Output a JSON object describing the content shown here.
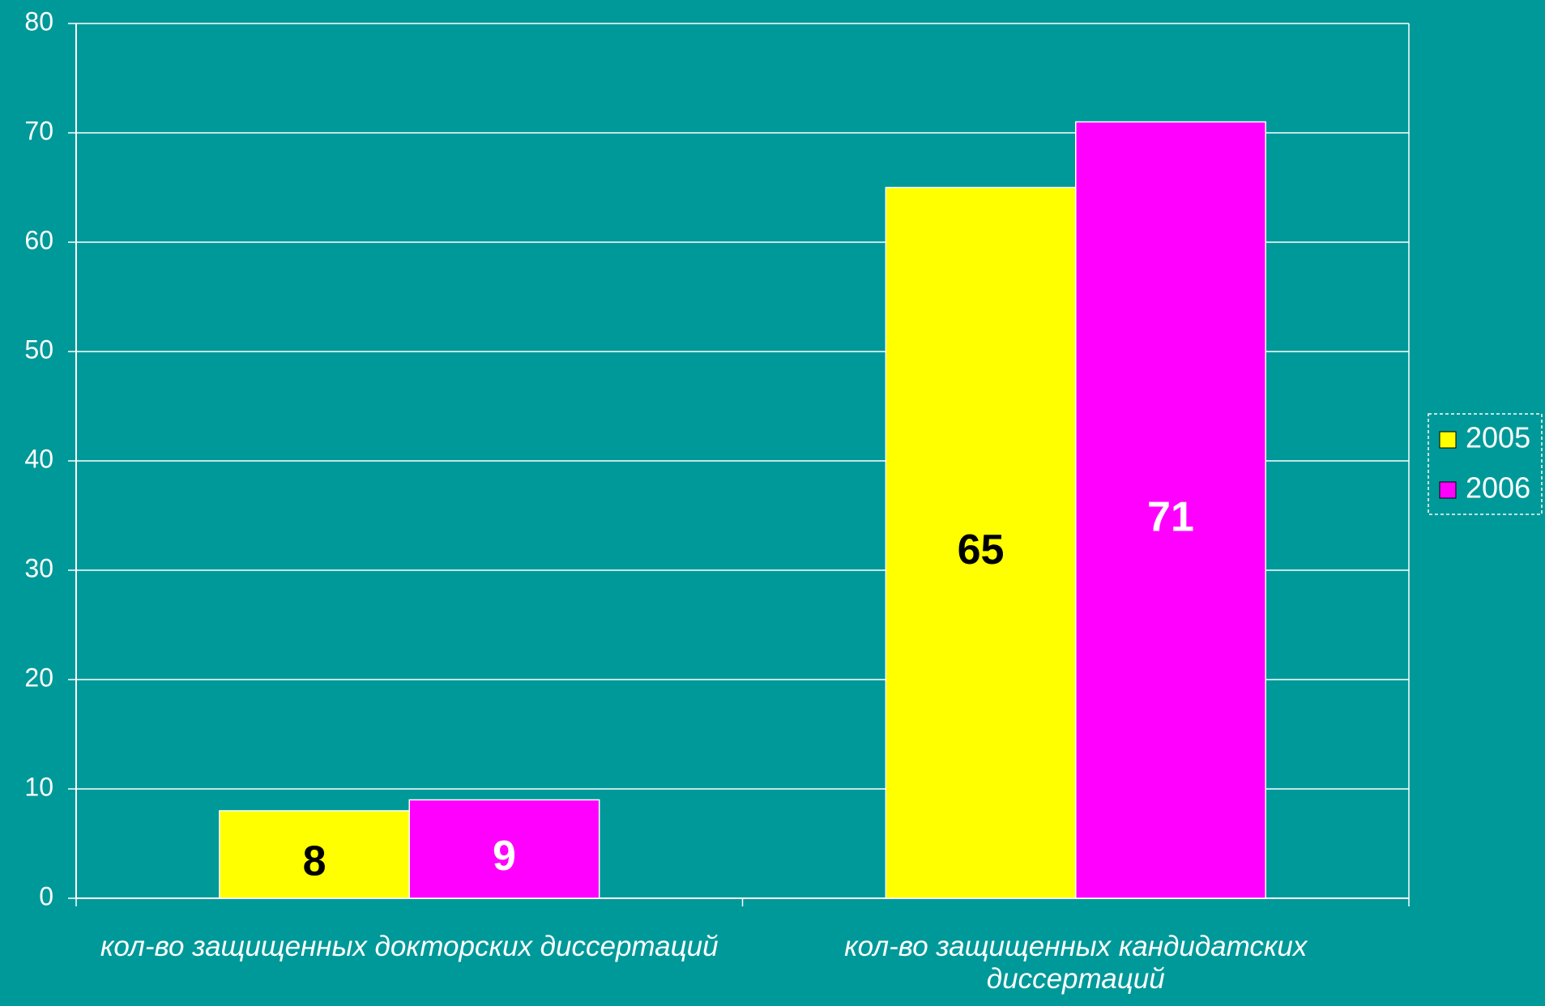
{
  "chart_data": {
    "type": "bar",
    "categories": [
      "кол-во защищенных докторских диссертаций",
      "кол-во защищенных кандидатских диссертаций"
    ],
    "series": [
      {
        "name": "2005",
        "color": "#ffff00",
        "label_color": "#000000",
        "values": [
          8,
          65
        ]
      },
      {
        "name": "2006",
        "color": "#ff00ff",
        "label_color": "#ffffff",
        "values": [
          9,
          71
        ]
      }
    ],
    "ylim": [
      0,
      80
    ],
    "yticks": [
      0,
      10,
      20,
      30,
      40,
      50,
      60,
      70,
      80
    ],
    "grid": true,
    "legend": "right"
  }
}
